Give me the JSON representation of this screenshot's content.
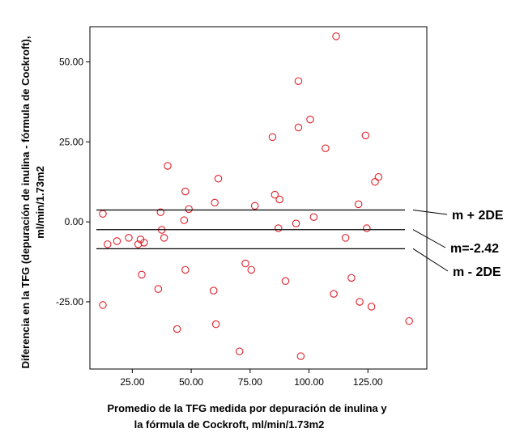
{
  "chart_data": {
    "type": "scatter",
    "title": "",
    "xlabel_lines": [
      "Promedio de la TFG medida por depuración de inulina y",
      "la fórmula de Cockroft,  ml/min/1.73m2"
    ],
    "ylabel_lines": [
      "Diferencia en la TFG  (depuración de inulina - fórmula de Cockroft),",
      "ml/min/1.73m2"
    ],
    "xlim": [
      7,
      150
    ],
    "ylim": [
      -46,
      61
    ],
    "xticks": [
      25,
      50,
      75,
      100,
      125
    ],
    "xtick_labels": [
      "25.00",
      "50.00",
      "75.00",
      "100.00",
      "125.00"
    ],
    "yticks": [
      -25,
      0,
      25,
      50
    ],
    "ytick_labels": [
      "-25.00",
      "0.00",
      "25.00",
      "50.00"
    ],
    "grid": false,
    "marker_color": "#e0202a",
    "line_color": "#000000",
    "reference_lines": [
      {
        "y": 3.7,
        "label": "m + 2DE"
      },
      {
        "y": -2.42,
        "label": "m=-2.42"
      },
      {
        "y": -8.4,
        "label": "m - 2DE"
      }
    ],
    "points": [
      {
        "x": 12.5,
        "y": 2.5
      },
      {
        "x": 12.5,
        "y": -26.0
      },
      {
        "x": 14.5,
        "y": -7.0
      },
      {
        "x": 18.5,
        "y": -6.0
      },
      {
        "x": 23.5,
        "y": -5.0
      },
      {
        "x": 27.5,
        "y": -7.0
      },
      {
        "x": 28.5,
        "y": -5.5
      },
      {
        "x": 29.0,
        "y": -16.5
      },
      {
        "x": 30.0,
        "y": -6.5
      },
      {
        "x": 36.0,
        "y": -21.0
      },
      {
        "x": 37.0,
        "y": 3.0
      },
      {
        "x": 37.5,
        "y": -2.5
      },
      {
        "x": 38.5,
        "y": -5.0
      },
      {
        "x": 40.0,
        "y": 17.5
      },
      {
        "x": 44.0,
        "y": -33.5
      },
      {
        "x": 47.0,
        "y": 0.5
      },
      {
        "x": 47.5,
        "y": 9.5
      },
      {
        "x": 47.5,
        "y": -15.0
      },
      {
        "x": 49.0,
        "y": 4.0
      },
      {
        "x": 59.5,
        "y": -21.5
      },
      {
        "x": 60.0,
        "y": 6.0
      },
      {
        "x": 60.5,
        "y": -32.0
      },
      {
        "x": 61.5,
        "y": 13.5
      },
      {
        "x": 70.5,
        "y": -40.5
      },
      {
        "x": 73.0,
        "y": -13.0
      },
      {
        "x": 75.5,
        "y": -15.0
      },
      {
        "x": 77.0,
        "y": 5.0
      },
      {
        "x": 84.5,
        "y": 26.5
      },
      {
        "x": 85.5,
        "y": 8.5
      },
      {
        "x": 87.0,
        "y": -2.0
      },
      {
        "x": 87.5,
        "y": 7.0
      },
      {
        "x": 90.0,
        "y": -18.5
      },
      {
        "x": 94.5,
        "y": -0.5
      },
      {
        "x": 95.5,
        "y": 44.0
      },
      {
        "x": 95.5,
        "y": 29.5
      },
      {
        "x": 96.5,
        "y": -42.0
      },
      {
        "x": 100.5,
        "y": 32.0
      },
      {
        "x": 102.0,
        "y": 1.5
      },
      {
        "x": 107.0,
        "y": 23.0
      },
      {
        "x": 110.5,
        "y": -22.5
      },
      {
        "x": 111.5,
        "y": 58.0
      },
      {
        "x": 115.5,
        "y": -5.0
      },
      {
        "x": 118.0,
        "y": -17.5
      },
      {
        "x": 121.0,
        "y": 5.5
      },
      {
        "x": 121.5,
        "y": -25.0
      },
      {
        "x": 124.0,
        "y": 27.0
      },
      {
        "x": 124.5,
        "y": -2.0
      },
      {
        "x": 126.5,
        "y": -26.5
      },
      {
        "x": 128.0,
        "y": 12.5
      },
      {
        "x": 129.5,
        "y": 14.0
      },
      {
        "x": 142.5,
        "y": -31.0
      }
    ]
  }
}
